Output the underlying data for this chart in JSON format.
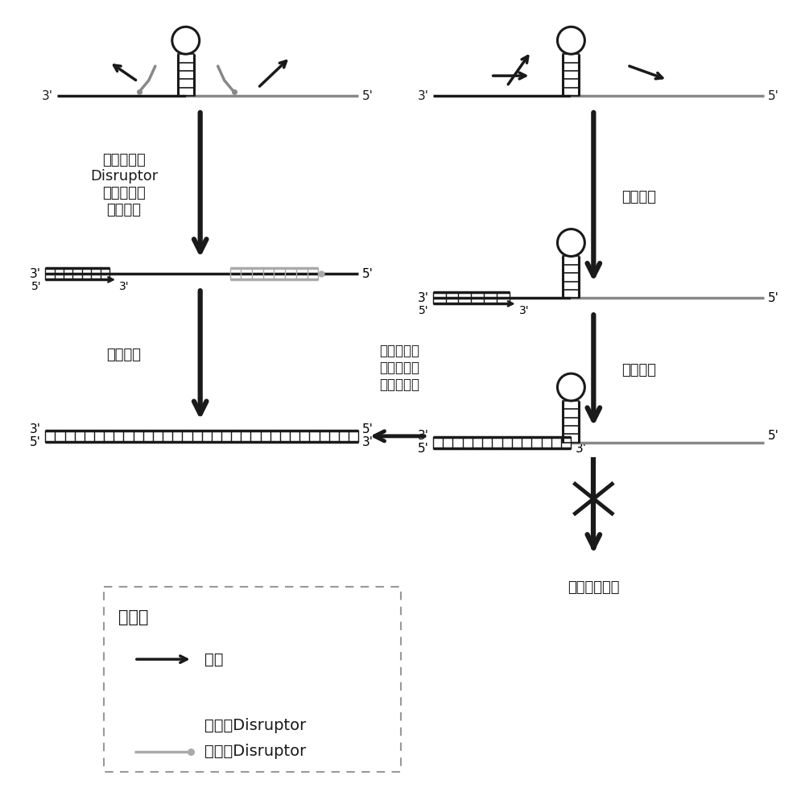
{
  "bg_color": "#ffffff",
  "black": "#1a1a1a",
  "gray": "#888888",
  "light_gray": "#aaaaaa",
  "arrow1_left_label": "引物杂交和\nDisruptor\n解链分子内\n二级结构",
  "arrow1_right_label": "引物杂交",
  "arrow2_left_label": "引物延伸",
  "arrow2_right_label": "引物延伸",
  "arrow3_mid_label": "继续延伸合\n成双链产物\n的效率降低",
  "stop_label": "反应提前终止",
  "legend_title": "图例：",
  "legend_primer": "引物",
  "legend_pre": "杂交前Disruptor",
  "legend_post": "杂交后Disruptor"
}
